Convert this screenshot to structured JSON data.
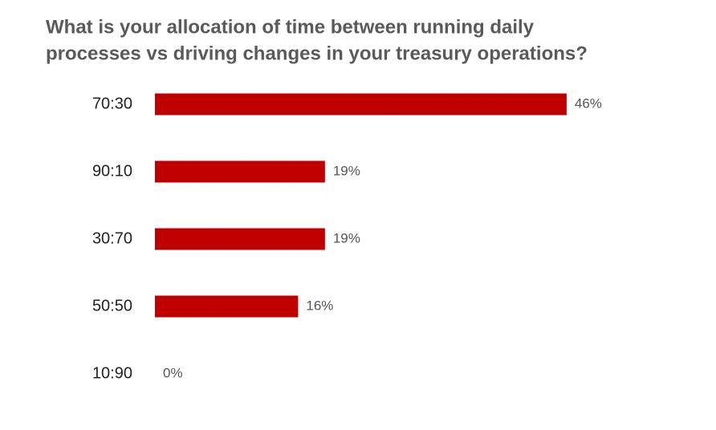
{
  "chart_data": {
    "type": "bar",
    "orientation": "horizontal",
    "title": [
      "What is your allocation of time between running daily",
      "processes vs driving changes in your treasury operations?"
    ],
    "categories": [
      "70:30",
      "90:10",
      "30:70",
      "50:50",
      "10:90"
    ],
    "values": [
      46,
      19,
      19,
      16,
      0
    ],
    "value_labels": [
      "46%",
      "19%",
      "19%",
      "16%",
      "0%"
    ],
    "color": "#c00000"
  }
}
